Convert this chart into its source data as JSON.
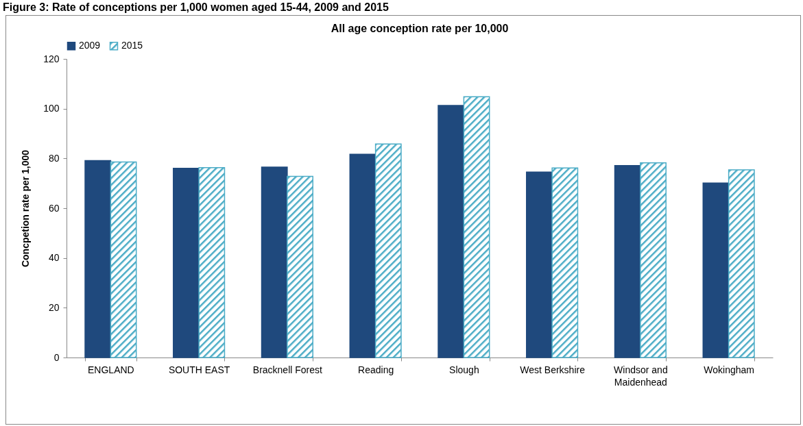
{
  "chart_data": {
    "type": "bar",
    "title": "Figure 3: Rate of conceptions per 1,000 women aged 15-44, 2009 and 2015",
    "subtitle": "All age conception rate per 10,000",
    "ylabel": "Concpetion rate per 1,000",
    "categories": [
      "ENGLAND",
      "SOUTH EAST",
      "Bracknell Forest",
      "Reading",
      "Slough",
      "West Berkshire",
      "Windsor and Maidenhead",
      "Wokingham"
    ],
    "series": [
      {
        "name": "2009",
        "color": "#1f497d",
        "values": [
          79.1,
          76.0,
          76.5,
          81.7,
          101.3,
          74.5,
          77.1,
          70.1
        ]
      },
      {
        "name": "2015",
        "color": "#4bacc6",
        "values": [
          78.6,
          76.3,
          72.8,
          85.8,
          104.8,
          76.2,
          78.2,
          75.4
        ]
      }
    ],
    "ylim": [
      0,
      120
    ],
    "yticks": [
      0,
      20,
      40,
      60,
      80,
      100,
      120
    ],
    "grid": false,
    "legend": "top"
  }
}
